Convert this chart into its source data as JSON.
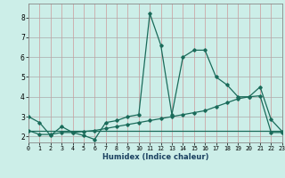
{
  "xlabel": "Humidex (Indice chaleur)",
  "xlim": [
    0,
    23
  ],
  "ylim": [
    1.7,
    8.7
  ],
  "yticks": [
    2,
    3,
    4,
    5,
    6,
    7,
    8
  ],
  "xticks": [
    0,
    1,
    2,
    3,
    4,
    5,
    6,
    7,
    8,
    9,
    10,
    11,
    12,
    13,
    14,
    15,
    16,
    17,
    18,
    19,
    20,
    21,
    22,
    23
  ],
  "bg_color": "#cceee8",
  "grid_color_h": "#aaaaaa",
  "grid_color_v": "#cc9999",
  "line_color": "#1a6b5a",
  "line1_x": [
    0,
    1,
    2,
    3,
    4,
    5,
    6,
    7,
    8,
    9,
    10,
    11,
    12,
    13,
    14,
    15,
    16,
    17,
    18,
    19,
    20,
    21,
    22,
    23
  ],
  "line1_y": [
    3.0,
    2.7,
    2.05,
    2.5,
    2.2,
    2.05,
    1.85,
    2.7,
    2.8,
    3.0,
    3.1,
    8.2,
    6.6,
    3.1,
    6.0,
    6.35,
    6.35,
    5.0,
    4.6,
    4.0,
    4.0,
    4.5,
    2.85,
    2.25
  ],
  "line2_x": [
    0,
    1,
    2,
    3,
    4,
    5,
    6,
    7,
    8,
    9,
    10,
    11,
    12,
    13,
    14,
    15,
    16,
    17,
    18,
    19,
    20,
    21,
    22,
    23
  ],
  "line2_y": [
    2.3,
    2.1,
    2.1,
    2.2,
    2.2,
    2.25,
    2.3,
    2.4,
    2.5,
    2.6,
    2.7,
    2.8,
    2.9,
    3.0,
    3.1,
    3.2,
    3.3,
    3.5,
    3.7,
    3.9,
    4.0,
    4.05,
    2.2,
    2.2
  ],
  "line3_y": [
    2.3,
    2.3,
    2.3,
    2.3,
    2.3,
    2.3,
    2.3,
    2.3,
    2.3,
    2.3,
    2.3,
    2.3,
    2.3,
    2.3,
    2.3,
    2.3,
    2.3,
    2.3,
    2.3,
    2.3,
    2.3,
    2.3,
    2.3,
    2.3
  ]
}
